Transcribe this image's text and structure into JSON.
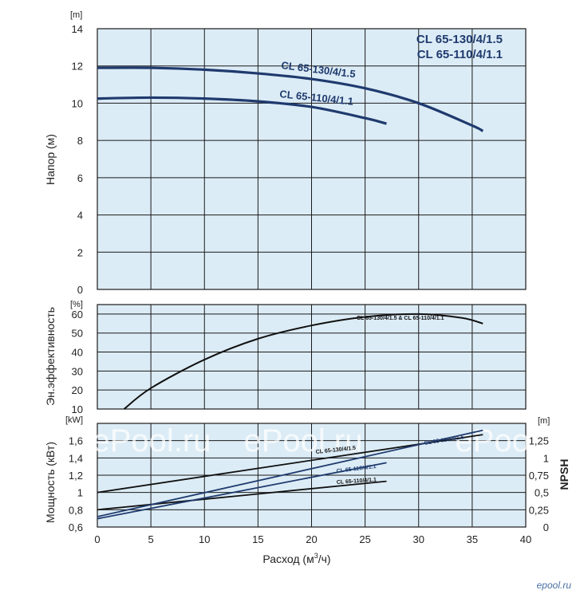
{
  "chart_data": [
    {
      "id": "head",
      "type": "line",
      "title": "",
      "xlabel": "",
      "ylabel": "Напор (м)",
      "unit": "[m]",
      "xlim": [
        0,
        40
      ],
      "ylim": [
        0,
        14
      ],
      "y_ticks": [
        0,
        2,
        4,
        6,
        8,
        10,
        12,
        14
      ],
      "grid": true,
      "legend": [
        "CL 65-130/4/1.5",
        "CL 65-110/4/1.1"
      ],
      "series": [
        {
          "name": "CL 65-130/4/1.5",
          "color": "#1f3a6e",
          "x": [
            0,
            5,
            10,
            15,
            20,
            25,
            30,
            35,
            36
          ],
          "y": [
            11.9,
            11.9,
            11.8,
            11.6,
            11.3,
            10.8,
            10.0,
            8.8,
            8.5
          ]
        },
        {
          "name": "CL 65-110/4/1.1",
          "color": "#1f3a6e",
          "x": [
            0,
            5,
            10,
            15,
            20,
            25,
            27
          ],
          "y": [
            10.25,
            10.3,
            10.25,
            10.1,
            9.8,
            9.2,
            8.9
          ]
        }
      ],
      "curve_labels": [
        "CL 65-130/4/1.5",
        "CL 65-110/4/1.1"
      ]
    },
    {
      "id": "efficiency",
      "type": "line",
      "ylabel": "Эн.эффективность",
      "unit": "[%]",
      "xlim": [
        0,
        40
      ],
      "ylim": [
        10,
        65
      ],
      "y_ticks": [
        10,
        20,
        30,
        40,
        50,
        60
      ],
      "grid": true,
      "series": [
        {
          "name": "CL 65-130/4/1.5 & CL 65-110/4/1.1",
          "color": "#111111",
          "x": [
            2.5,
            5,
            10,
            15,
            20,
            25,
            30,
            34,
            36
          ],
          "y": [
            10,
            21,
            36,
            47,
            54,
            58.5,
            60,
            58,
            55
          ]
        }
      ],
      "curve_labels": [
        "CL 65-130/4/1.5 & CL 65-110/4/1.1"
      ]
    },
    {
      "id": "power",
      "type": "line",
      "ylabel": "Мощность (кВт)",
      "unit": "[kW]",
      "y2label": "NPSH",
      "y2unit": "[m]",
      "xlabel_prefix": "Расход (м",
      "xlabel_sup": "3",
      "xlabel_suffix": "/ч)",
      "xlim": [
        0,
        40
      ],
      "ylim": [
        0.6,
        1.8
      ],
      "y_ticks": [
        "0,6",
        "0,8",
        "1",
        "1,2",
        "1,4",
        "1,6"
      ],
      "y_tick_values": [
        0.6,
        0.8,
        1.0,
        1.2,
        1.4,
        1.6
      ],
      "y2lim": [
        0,
        1.5
      ],
      "y2_ticks": [
        "0",
        "0,25",
        "0,5",
        "0,75",
        "1",
        "1,25"
      ],
      "y2_tick_values": [
        0,
        0.25,
        0.5,
        0.75,
        1.0,
        1.25
      ],
      "x_ticks": [
        0,
        5,
        10,
        15,
        20,
        25,
        30,
        35,
        40
      ],
      "grid": true,
      "series": [
        {
          "name": "CL 65-130/4/1.5",
          "color": "#111111",
          "axis": "power",
          "x": [
            0,
            36
          ],
          "y": [
            1.0,
            1.67
          ]
        },
        {
          "name": "CL 65-110/4/1.1",
          "color": "#111111",
          "axis": "power",
          "x": [
            0,
            27
          ],
          "y": [
            0.8,
            1.13
          ]
        },
        {
          "name": "CL 65-130/4/1.5",
          "color": "#1f3a6e",
          "axis": "npsh",
          "x": [
            0,
            36
          ],
          "y": [
            0.15,
            1.4
          ]
        },
        {
          "name": "CL 65-110/4/1.1",
          "color": "#1f3a6e",
          "axis": "npsh",
          "x": [
            0,
            27
          ],
          "y": [
            0.12,
            0.93
          ]
        }
      ],
      "curve_labels": [
        "CL 65-130/4/1.5",
        "CL 65-110/4/1.1",
        "CL 65-130/4/1.5",
        "CL 65-110/4/1.1"
      ]
    }
  ],
  "watermark": "ePool.ru",
  "logo": "epool.ru",
  "colors": {
    "plot_bg": "#dcecf6",
    "grid": "#1a1a1a",
    "navy": "#1f3a6e",
    "black": "#111111"
  }
}
